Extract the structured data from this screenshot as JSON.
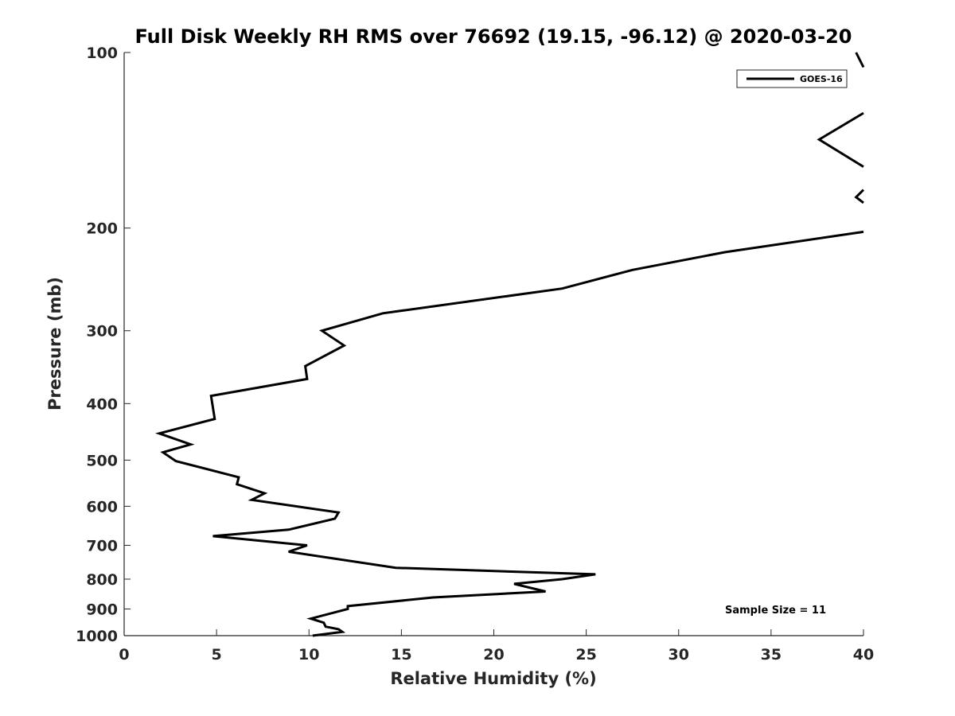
{
  "chart_data": {
    "type": "line",
    "title": "Full Disk Weekly RH RMS over 76692 (19.15, -96.12) @ 2020-03-20",
    "xlabel": "Relative Humidity (%)",
    "ylabel": "Pressure (mb)",
    "xlim": [
      0,
      40
    ],
    "ylim": [
      1000,
      100
    ],
    "y_scale": "log",
    "grid": false,
    "legend_position": "top-right",
    "xticks": [
      "0",
      "5",
      "10",
      "15",
      "20",
      "25",
      "30",
      "35",
      "40"
    ],
    "yticks": [
      "100",
      "200",
      "300",
      "400",
      "500",
      "600",
      "700",
      "800",
      "900",
      "1000"
    ],
    "annotation": "Sample Size = 11",
    "line_color": "#000000",
    "series": [
      {
        "name": "GOES-16",
        "segments": [
          [
            [
              39.6,
              100
            ],
            [
              40,
              106
            ]
          ],
          [
            [
              40,
              127
            ],
            [
              37.6,
              141
            ],
            [
              40,
              157
            ]
          ],
          [
            [
              40,
              172
            ],
            [
              39.6,
              177
            ],
            [
              40,
              181
            ]
          ],
          [
            [
              40,
              203
            ],
            [
              32.5,
              220
            ],
            [
              27.5,
              236
            ],
            [
              23.7,
              254
            ],
            [
              14.0,
              280
            ],
            [
              10.7,
              300
            ],
            [
              11.9,
              318
            ],
            [
              9.8,
              345
            ],
            [
              9.9,
              363
            ],
            [
              4.7,
              388
            ],
            [
              4.9,
              425
            ],
            [
              1.9,
              450
            ],
            [
              3.6,
              470
            ],
            [
              2.1,
              485
            ],
            [
              2.8,
              502
            ],
            [
              6.2,
              535
            ],
            [
              6.1,
              550
            ],
            [
              7.6,
              570
            ],
            [
              6.9,
              585
            ],
            [
              11.6,
              615
            ],
            [
              11.4,
              630
            ],
            [
              8.9,
              658
            ],
            [
              4.8,
              675
            ],
            [
              9.9,
              700
            ],
            [
              8.9,
              718
            ],
            [
              14.7,
              765
            ],
            [
              25.5,
              785
            ],
            [
              23.7,
              800
            ],
            [
              21.1,
              815
            ],
            [
              22.8,
              840
            ],
            [
              16.7,
              860
            ],
            [
              12.1,
              890
            ],
            [
              12.1,
              900
            ],
            [
              10.1,
              935
            ],
            [
              10.8,
              950
            ],
            [
              10.9,
              965
            ],
            [
              11.6,
              975
            ],
            [
              11.8,
              985
            ],
            [
              10.2,
              1000
            ]
          ]
        ]
      }
    ]
  }
}
